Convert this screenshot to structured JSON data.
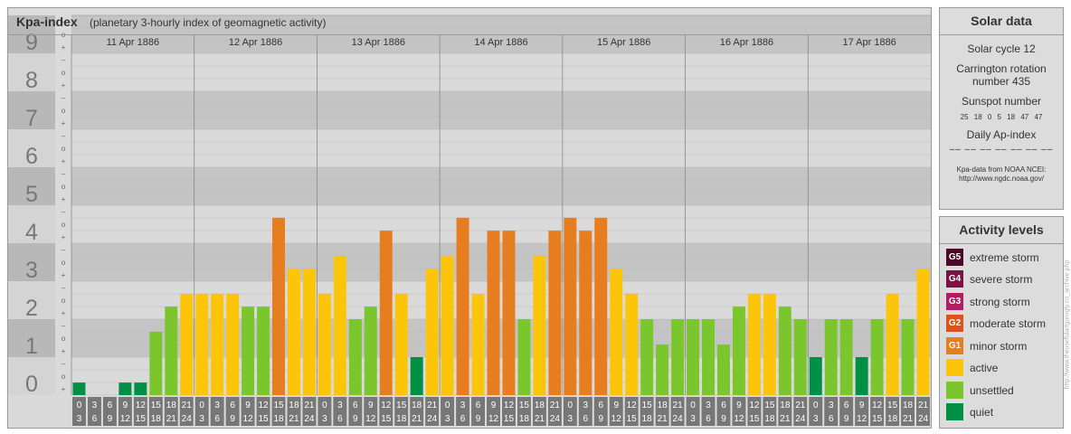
{
  "kpa": {
    "title": "Kpa-index",
    "subtitle": "(planetary 3-hourly index of geomagnetic activity)"
  },
  "chart_data": {
    "type": "bar",
    "title": "Kpa-index",
    "subtitle": "(planetary 3-hourly index of geomagnetic activity)",
    "days": [
      "11 Apr 1886",
      "12 Apr 1886",
      "13 Apr 1886",
      "14 Apr 1886",
      "15 Apr 1886",
      "16 Apr 1886",
      "17 Apr 1886"
    ],
    "interval_starts": [
      "0",
      "3",
      "6",
      "9",
      "12",
      "15",
      "18",
      "21"
    ],
    "interval_ends": [
      "3",
      "6",
      "9",
      "12",
      "15",
      "18",
      "21",
      "24"
    ],
    "y_labels": [
      "0",
      "1",
      "2",
      "3",
      "4",
      "5",
      "6",
      "7",
      "8",
      "9"
    ],
    "third_marks": [
      "+",
      "o",
      "–"
    ],
    "ylim": [
      0,
      9.33
    ],
    "values": [
      0.33,
      0,
      0,
      0.33,
      0.33,
      1.67,
      2.33,
      2.67,
      2.67,
      2.67,
      2.67,
      2.33,
      2.33,
      4.67,
      3.33,
      3.33,
      2.67,
      3.67,
      2.0,
      2.33,
      4.33,
      2.67,
      1.0,
      3.33,
      3.67,
      4.67,
      2.67,
      4.33,
      4.33,
      2.0,
      3.67,
      4.33,
      4.67,
      4.33,
      4.67,
      3.33,
      2.67,
      2.0,
      1.33,
      2.0,
      2.0,
      2.0,
      1.33,
      2.33,
      2.67,
      2.67,
      2.33,
      2.0,
      1.0,
      2.0,
      2.0,
      1.0,
      2.0,
      2.67,
      2.0,
      3.33
    ],
    "levels": [
      "quiet",
      "quiet",
      "quiet",
      "quiet",
      "quiet",
      "unsettled",
      "unsettled",
      "active",
      "active",
      "active",
      "active",
      "unsettled",
      "unsettled",
      "minor",
      "active",
      "active",
      "active",
      "active",
      "unsettled",
      "unsettled",
      "minor",
      "active",
      "quiet",
      "active",
      "active",
      "minor",
      "active",
      "minor",
      "minor",
      "unsettled",
      "active",
      "minor",
      "minor",
      "minor",
      "minor",
      "active",
      "active",
      "unsettled",
      "unsettled",
      "unsettled",
      "unsettled",
      "unsettled",
      "unsettled",
      "unsettled",
      "active",
      "active",
      "unsettled",
      "unsettled",
      "quiet",
      "unsettled",
      "unsettled",
      "quiet",
      "unsettled",
      "active",
      "unsettled",
      "active"
    ],
    "colors": {
      "quiet": "#009045",
      "unsettled": "#7bc62d",
      "active": "#fcc50a",
      "minor": "#e67d1e",
      "moderate": "#d9531e",
      "strong": "#b01d63",
      "severe": "#7d1146",
      "extreme": "#4d0828",
      "band_dark": "#c4c4c4",
      "band_light": "#dadada",
      "ylabel_dark": "#b8b8b8",
      "ylabel_light": "#d4d4d4",
      "tick_box": "#777777"
    },
    "grid": true
  },
  "solar": {
    "title": "Solar data",
    "cycle": "Solar cycle 12",
    "carrington": "Carrington rotation number 435",
    "sunspot_title": "Sunspot number",
    "sunspot_values": "25 18 0 5 18 47 47",
    "ap_title": "Daily Ap-index",
    "ap_values": "–– –– –– –– –– –– ––",
    "source": "Kpa-data from NOAA NCEI:",
    "source_url": "http://www.ngdc.noaa.gov/"
  },
  "activity": {
    "title": "Activity levels",
    "items": [
      {
        "badge": "G5",
        "label": "extreme storm",
        "color": "#4d0828"
      },
      {
        "badge": "G4",
        "label": "severe storm",
        "color": "#7d1146"
      },
      {
        "badge": "G3",
        "label": "strong storm",
        "color": "#b01d63"
      },
      {
        "badge": "G2",
        "label": "moderate storm",
        "color": "#d9531e"
      },
      {
        "badge": "G1",
        "label": "minor storm",
        "color": "#e67d1e"
      },
      {
        "badge": "",
        "label": "active",
        "color": "#fcc50a"
      },
      {
        "badge": "",
        "label": "unsettled",
        "color": "#7bc62d"
      },
      {
        "badge": "",
        "label": "quiet",
        "color": "#009045"
      }
    ]
  },
  "credit": "http://www.theusefulartgurugly.co_archive.php"
}
